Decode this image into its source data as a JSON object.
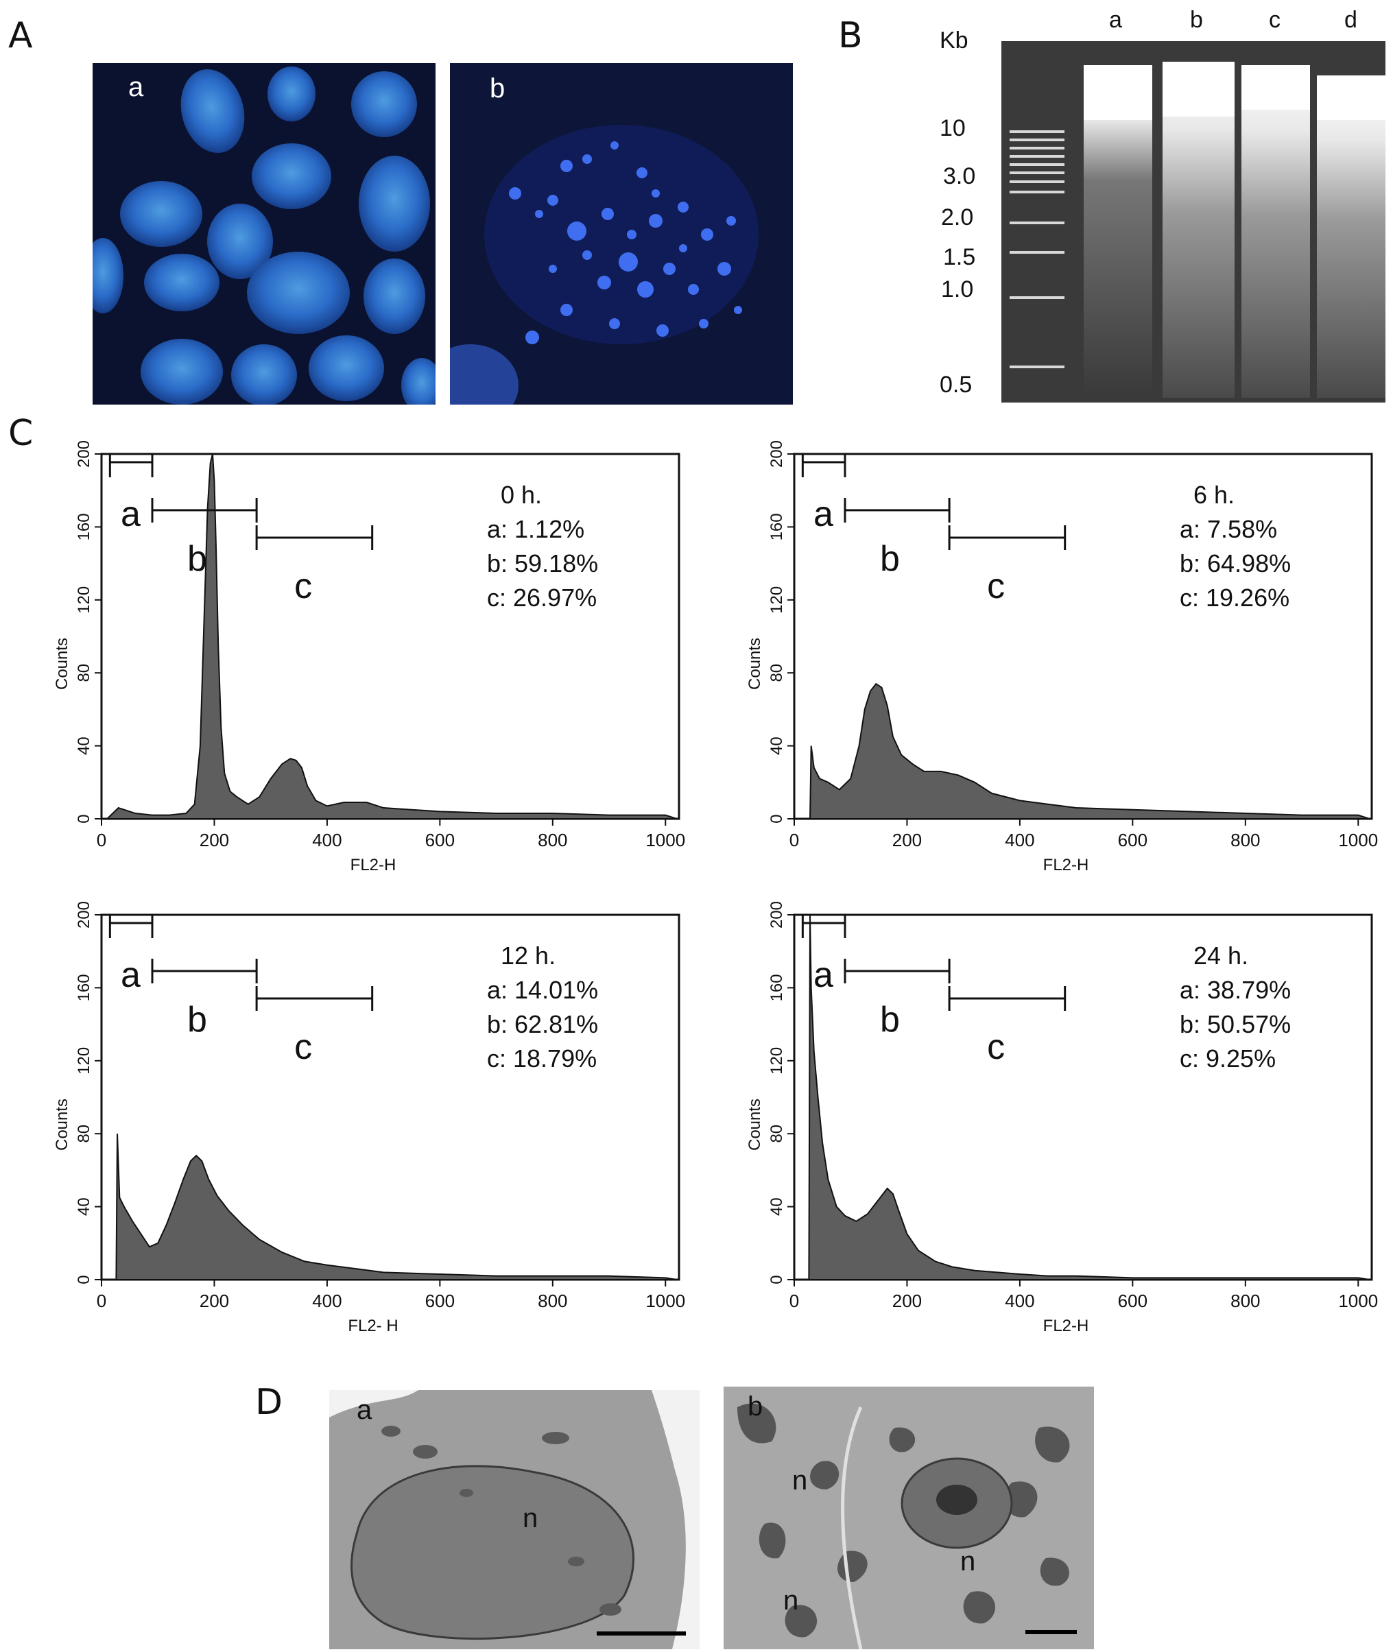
{
  "panels": {
    "A": "A",
    "B": "B",
    "C": "C",
    "D": "D"
  },
  "panel_a": {
    "img_a_label": "a",
    "img_b_label": "b"
  },
  "panel_b": {
    "unit": "Kb",
    "lanes": [
      "a",
      "b",
      "c",
      "d"
    ],
    "ladder": [
      "10",
      "3.0",
      "2.0",
      "1.5",
      "1.0",
      "0.5"
    ]
  },
  "panel_d": {
    "img_a_label": "a",
    "img_b_label": "b",
    "nucleus_label": "n"
  },
  "chart_data": [
    {
      "type": "area",
      "time": "0 h.",
      "xlabel": "FL2-H",
      "ylabel": "Counts",
      "xlim": [
        0,
        1024
      ],
      "ylim": [
        0,
        200
      ],
      "xticks": [
        "0",
        "200",
        "400",
        "600",
        "800",
        "1000"
      ],
      "yticks": [
        "0",
        "40",
        "80",
        "120",
        "160",
        "200"
      ],
      "gates": [
        {
          "name": "a",
          "pct": "a: 1.12%"
        },
        {
          "name": "b",
          "pct": "b: 59.18%"
        },
        {
          "name": "c",
          "pct": "c: 26.97%"
        }
      ],
      "x": [
        10,
        30,
        60,
        90,
        120,
        150,
        165,
        175,
        182,
        188,
        193,
        197,
        200,
        203,
        207,
        212,
        218,
        228,
        240,
        260,
        280,
        300,
        320,
        335,
        345,
        355,
        365,
        380,
        400,
        430,
        470,
        500,
        550,
        600,
        700,
        800,
        900,
        1000,
        1020
      ],
      "values": [
        0,
        6,
        3,
        2,
        2,
        3,
        8,
        40,
        110,
        170,
        195,
        200,
        185,
        150,
        95,
        50,
        25,
        15,
        12,
        8,
        12,
        22,
        30,
        33,
        32,
        28,
        18,
        10,
        7,
        9,
        9,
        6,
        5,
        4,
        3,
        3,
        2,
        2,
        0
      ]
    },
    {
      "type": "area",
      "time": "6 h.",
      "xlabel": "FL2-H",
      "ylabel": "Counts",
      "xlim": [
        0,
        1024
      ],
      "ylim": [
        0,
        200
      ],
      "xticks": [
        "0",
        "200",
        "400",
        "600",
        "800",
        "1000"
      ],
      "yticks": [
        "0",
        "40",
        "80",
        "120",
        "160",
        "200"
      ],
      "gates": [
        {
          "name": "a",
          "pct": "a: 7.58%"
        },
        {
          "name": "b",
          "pct": "b: 64.98%"
        },
        {
          "name": "c",
          "pct": "c: 19.26%"
        }
      ],
      "x": [
        28,
        30,
        35,
        45,
        60,
        80,
        100,
        115,
        125,
        135,
        145,
        155,
        165,
        175,
        190,
        210,
        230,
        260,
        290,
        320,
        350,
        400,
        450,
        500,
        600,
        700,
        800,
        900,
        1000,
        1020
      ],
      "values": [
        0,
        40,
        28,
        22,
        20,
        16,
        22,
        40,
        60,
        70,
        74,
        72,
        62,
        45,
        35,
        30,
        26,
        26,
        24,
        20,
        14,
        10,
        8,
        6,
        5,
        4,
        3,
        2,
        2,
        0
      ]
    },
    {
      "type": "area",
      "time": "12 h.",
      "xlabel": "FL2- H",
      "ylabel": "Counts",
      "xlim": [
        0,
        1024
      ],
      "ylim": [
        0,
        200
      ],
      "xticks": [
        "0",
        "200",
        "400",
        "600",
        "800",
        "1000"
      ],
      "yticks": [
        "0",
        "40",
        "80",
        "120",
        "160",
        "200"
      ],
      "gates": [
        {
          "name": "a",
          "pct": "a: 14.01%"
        },
        {
          "name": "b",
          "pct": "b: 62.81%"
        },
        {
          "name": "c",
          "pct": "c: 18.79%"
        }
      ],
      "x": [
        26,
        28,
        32,
        40,
        55,
        70,
        85,
        100,
        115,
        130,
        145,
        158,
        168,
        178,
        190,
        205,
        225,
        250,
        280,
        320,
        360,
        400,
        450,
        500,
        600,
        700,
        800,
        900,
        1000,
        1020
      ],
      "values": [
        0,
        80,
        45,
        40,
        32,
        25,
        18,
        20,
        30,
        42,
        55,
        65,
        68,
        65,
        55,
        46,
        38,
        30,
        22,
        15,
        10,
        8,
        6,
        4,
        3,
        2,
        2,
        2,
        1,
        0
      ]
    },
    {
      "type": "area",
      "time": "24 h.",
      "xlabel": "FL2-H",
      "ylabel": "Counts",
      "xlim": [
        0,
        1024
      ],
      "ylim": [
        0,
        200
      ],
      "xticks": [
        "0",
        "200",
        "400",
        "600",
        "800",
        "1000"
      ],
      "yticks": [
        "0",
        "40",
        "80",
        "120",
        "160",
        "200"
      ],
      "gates": [
        {
          "name": "a",
          "pct": "a: 38.79%"
        },
        {
          "name": "b",
          "pct": "b: 50.57%"
        },
        {
          "name": "c",
          "pct": "c: 9.25%"
        }
      ],
      "x": [
        26,
        28,
        30,
        35,
        42,
        50,
        60,
        75,
        90,
        110,
        130,
        150,
        165,
        175,
        185,
        200,
        220,
        250,
        280,
        320,
        360,
        400,
        450,
        500,
        600,
        700,
        800,
        900,
        1000,
        1020
      ],
      "values": [
        0,
        200,
        160,
        125,
        100,
        75,
        55,
        40,
        35,
        32,
        36,
        44,
        50,
        47,
        38,
        25,
        16,
        10,
        7,
        5,
        4,
        3,
        2,
        2,
        1,
        1,
        1,
        1,
        1,
        0
      ]
    }
  ]
}
